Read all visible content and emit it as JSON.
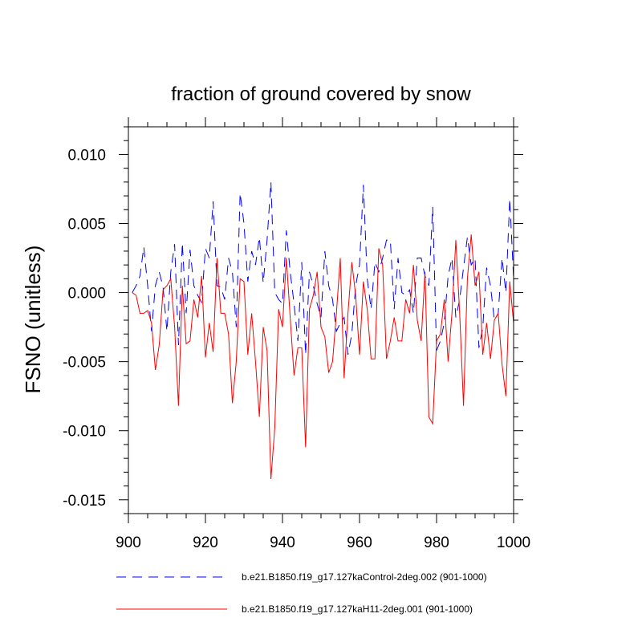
{
  "chart_data": {
    "type": "line",
    "title": "fraction of ground covered by snow",
    "xlabel": "",
    "ylabel": "FSNO  (unitless)",
    "xlim": [
      900,
      1000
    ],
    "ylim": [
      -0.016,
      0.012
    ],
    "x_ticks": [
      900,
      920,
      940,
      960,
      980,
      1000
    ],
    "x_tick_labels": [
      "900",
      "920",
      "940",
      "960",
      "980",
      "1000"
    ],
    "y_ticks": [
      0.01,
      0.005,
      0.0,
      -0.005,
      -0.01,
      -0.015
    ],
    "y_tick_labels": [
      "0.010",
      "0.005",
      "0.000",
      "-0.005",
      "-0.010",
      "-0.015"
    ],
    "grid": false,
    "legend_position": "bottom",
    "x": [
      901,
      902,
      903,
      904,
      905,
      906,
      907,
      908,
      909,
      910,
      911,
      912,
      913,
      914,
      915,
      916,
      917,
      918,
      919,
      920,
      921,
      922,
      923,
      924,
      925,
      926,
      927,
      928,
      929,
      930,
      931,
      932,
      933,
      934,
      935,
      936,
      937,
      938,
      939,
      940,
      941,
      942,
      943,
      944,
      945,
      946,
      947,
      948,
      949,
      950,
      951,
      952,
      953,
      954,
      955,
      956,
      957,
      958,
      959,
      960,
      961,
      962,
      963,
      964,
      965,
      966,
      967,
      968,
      969,
      970,
      971,
      972,
      973,
      974,
      975,
      976,
      977,
      978,
      979,
      980,
      981,
      982,
      983,
      984,
      985,
      986,
      987,
      988,
      989,
      990,
      991,
      992,
      993,
      994,
      995,
      996,
      997,
      998,
      999,
      1000
    ],
    "series": [
      {
        "name": "b.e21.B1850.f19_g17.127kaControl-2deg.002 (901-1000)",
        "color": "#0000ff",
        "dash": "dashed",
        "values": [
          0.0,
          0.0005,
          0.0012,
          0.0033,
          0.0005,
          -0.0028,
          0.0005,
          0.0015,
          0.0004,
          -0.0028,
          0.0015,
          0.0035,
          -0.0038,
          0.0036,
          -0.0015,
          0.0031,
          0.0005,
          -0.0002,
          -0.0007,
          0.0032,
          0.0025,
          0.0066,
          0.0005,
          0.0004,
          -0.0005,
          0.0025,
          0.0015,
          -0.0025,
          0.0072,
          0.005,
          0.0008,
          0.003,
          0.002,
          0.004,
          0.0007,
          0.0038,
          0.008,
          0.0,
          -0.0005,
          -0.0008,
          0.0045,
          0.0015,
          -0.0008,
          -0.0035,
          0.0022,
          -0.0045,
          0.0015,
          0.0005,
          -0.0008,
          -0.0018,
          0.003,
          0.0005,
          -0.0005,
          -0.0028,
          -0.0022,
          -0.0018,
          -0.0045,
          -0.003,
          0.0005,
          0.002,
          0.0078,
          0.001,
          -0.0012,
          0.0022,
          0.0015,
          0.0025,
          0.0038,
          0.0038,
          -0.0012,
          0.0025,
          0.0,
          -0.0002,
          0.0002,
          -0.0015,
          0.0025,
          0.0025,
          0.0012,
          0.0005,
          0.0062,
          -0.0042,
          -0.0035,
          -0.0022,
          0.0012,
          0.0025,
          -0.0018,
          -0.0005,
          0.0018,
          0.004,
          0.002,
          0.0025,
          -0.004,
          -0.0025,
          0.0018,
          0.0005,
          -0.002,
          -0.0015,
          0.0025,
          0.0,
          0.0068,
          0.001
        ],
        "data_labels": []
      },
      {
        "name": "b.e21.B1850.f19_g17.127kaH11-2deg.001 (901-1000)",
        "color": "#ff0000",
        "dash": "solid",
        "values": [
          0.0,
          -0.0002,
          -0.0015,
          -0.0015,
          -0.0013,
          -0.0022,
          -0.0056,
          -0.0038,
          0.0002,
          0.0005,
          0.001,
          -0.0025,
          -0.0082,
          0.0005,
          -0.0037,
          -0.0035,
          -0.0005,
          -0.0018,
          0.0012,
          -0.0047,
          -0.0022,
          -0.0043,
          0.0025,
          -0.0015,
          -0.0015,
          -0.003,
          -0.008,
          -0.005,
          0.001,
          0.0008,
          -0.0045,
          -0.0015,
          -0.005,
          -0.009,
          -0.0025,
          -0.0042,
          -0.0135,
          -0.0098,
          -0.0012,
          -0.0025,
          0.0025,
          -0.0018,
          -0.006,
          -0.004,
          -0.004,
          -0.0112,
          -0.0012,
          -0.0002,
          0.0015,
          -0.0025,
          -0.0032,
          -0.0058,
          -0.005,
          -0.0015,
          0.0025,
          -0.0062,
          -0.0015,
          0.0022,
          -0.0002,
          -0.0045,
          0.0008,
          -0.0012,
          -0.0048,
          -0.0048,
          0.0032,
          0.002,
          -0.0048,
          -0.0035,
          -0.0018,
          -0.0035,
          -0.0035,
          -0.0005,
          -0.0015,
          0.002,
          -0.002,
          -0.0035,
          0.0015,
          -0.009,
          -0.0095,
          -0.0035,
          -0.003,
          -0.0005,
          -0.005,
          -0.0015,
          0.0038,
          -0.0015,
          -0.0082,
          0.001,
          0.0042,
          0.0005,
          0.0015,
          -0.0045,
          -0.0022,
          -0.0048,
          -0.002,
          -0.0015,
          -0.0052,
          -0.0075,
          0.0008,
          -0.0022
        ],
        "data_labels": []
      }
    ]
  }
}
